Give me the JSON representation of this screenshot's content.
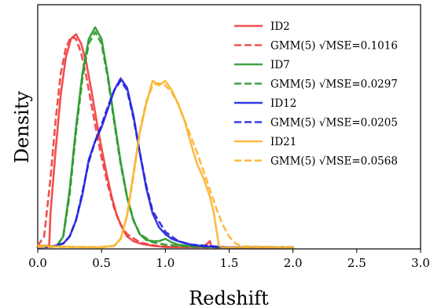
{
  "chart_data": {
    "type": "line",
    "xlabel": "Redshift",
    "ylabel": "Density",
    "xlim": [
      0.0,
      3.0
    ],
    "ylim": [
      0.0,
      1.0
    ],
    "xticks": [
      "0.0",
      "0.5",
      "1.0",
      "1.5",
      "2.0",
      "2.5",
      "3.0"
    ],
    "yticks": [],
    "legend_position": "top-right",
    "series": [
      {
        "name": "ID2",
        "color": "#f03c3c",
        "dash": "solid",
        "x": [
          0.0,
          0.05,
          0.09,
          0.1,
          0.14,
          0.18,
          0.22,
          0.26,
          0.3,
          0.34,
          0.38,
          0.42,
          0.46,
          0.5,
          0.54,
          0.58,
          0.62,
          0.66,
          0.7,
          0.75,
          0.8,
          0.85,
          0.9,
          1.0,
          1.1,
          1.2,
          1.3,
          1.35,
          1.36,
          1.5,
          2.0
        ],
        "y": [
          0.01,
          0.01,
          0.01,
          0.15,
          0.42,
          0.66,
          0.82,
          0.9,
          0.92,
          0.88,
          0.8,
          0.68,
          0.55,
          0.43,
          0.32,
          0.22,
          0.14,
          0.09,
          0.05,
          0.03,
          0.02,
          0.015,
          0.01,
          0.005,
          0.005,
          0.005,
          0.005,
          0.03,
          0.005,
          0.003,
          0.003
        ]
      },
      {
        "name": "GMM(5) √MSE=0.1016",
        "color": "#f03c3c",
        "dash": "dashed",
        "x": [
          0.0,
          0.05,
          0.1,
          0.14,
          0.18,
          0.22,
          0.26,
          0.3,
          0.34,
          0.38,
          0.42,
          0.46,
          0.5,
          0.55,
          0.6,
          0.65,
          0.7,
          0.8,
          0.9,
          1.0,
          1.2,
          1.5,
          2.0
        ],
        "y": [
          0.01,
          0.05,
          0.3,
          0.55,
          0.75,
          0.86,
          0.91,
          0.9,
          0.84,
          0.74,
          0.62,
          0.5,
          0.39,
          0.27,
          0.17,
          0.1,
          0.06,
          0.025,
          0.012,
          0.006,
          0.004,
          0.003,
          0.003
        ]
      },
      {
        "name": "ID7",
        "color": "#2a9a2a",
        "dash": "solid",
        "x": [
          0.0,
          0.15,
          0.2,
          0.25,
          0.3,
          0.35,
          0.4,
          0.45,
          0.5,
          0.55,
          0.6,
          0.65,
          0.7,
          0.75,
          0.8,
          0.85,
          0.9,
          0.95,
          1.0,
          1.05,
          1.1,
          1.2,
          1.5,
          2.0
        ],
        "y": [
          0.005,
          0.01,
          0.05,
          0.25,
          0.52,
          0.75,
          0.9,
          0.95,
          0.9,
          0.74,
          0.55,
          0.37,
          0.22,
          0.12,
          0.06,
          0.035,
          0.03,
          0.03,
          0.04,
          0.025,
          0.015,
          0.008,
          0.003,
          0.003
        ]
      },
      {
        "name": "GMM(5) √MSE=0.0297",
        "color": "#2a9a2a",
        "dash": "dashed",
        "x": [
          0.0,
          0.15,
          0.2,
          0.25,
          0.3,
          0.35,
          0.4,
          0.45,
          0.5,
          0.55,
          0.6,
          0.65,
          0.7,
          0.75,
          0.8,
          0.9,
          1.0,
          1.1,
          1.2,
          1.5,
          2.0
        ],
        "y": [
          0.005,
          0.01,
          0.05,
          0.23,
          0.5,
          0.73,
          0.88,
          0.93,
          0.88,
          0.73,
          0.54,
          0.36,
          0.22,
          0.12,
          0.06,
          0.025,
          0.015,
          0.01,
          0.006,
          0.003,
          0.003
        ]
      },
      {
        "name": "ID12",
        "color": "#2323e0",
        "dash": "solid",
        "x": [
          0.0,
          0.1,
          0.2,
          0.25,
          0.3,
          0.35,
          0.4,
          0.45,
          0.5,
          0.55,
          0.6,
          0.65,
          0.7,
          0.75,
          0.8,
          0.85,
          0.9,
          0.95,
          1.0,
          1.05,
          1.1,
          1.2,
          1.3,
          1.5,
          2.0
        ],
        "y": [
          0.003,
          0.005,
          0.02,
          0.05,
          0.12,
          0.23,
          0.38,
          0.46,
          0.52,
          0.6,
          0.68,
          0.73,
          0.69,
          0.57,
          0.41,
          0.26,
          0.15,
          0.09,
          0.06,
          0.04,
          0.03,
          0.015,
          0.008,
          0.003,
          0.003
        ]
      },
      {
        "name": "GMM(5) √MSE=0.0205",
        "color": "#2323e0",
        "dash": "dashed",
        "x": [
          0.0,
          0.1,
          0.2,
          0.25,
          0.3,
          0.35,
          0.4,
          0.45,
          0.5,
          0.55,
          0.6,
          0.65,
          0.7,
          0.75,
          0.8,
          0.85,
          0.9,
          1.0,
          1.1,
          1.2,
          1.5,
          2.0
        ],
        "y": [
          0.003,
          0.005,
          0.02,
          0.05,
          0.12,
          0.24,
          0.37,
          0.46,
          0.53,
          0.61,
          0.68,
          0.72,
          0.68,
          0.56,
          0.41,
          0.27,
          0.16,
          0.07,
          0.03,
          0.015,
          0.003,
          0.003
        ]
      },
      {
        "name": "ID21",
        "color": "#fbb42d",
        "dash": "solid",
        "x": [
          0.0,
          0.3,
          0.5,
          0.6,
          0.65,
          0.7,
          0.75,
          0.8,
          0.85,
          0.9,
          0.95,
          1.0,
          1.05,
          1.1,
          1.15,
          1.2,
          1.25,
          1.3,
          1.35,
          1.38,
          1.4,
          1.42,
          1.45,
          1.5,
          2.0
        ],
        "y": [
          0.01,
          0.005,
          0.003,
          0.01,
          0.04,
          0.14,
          0.32,
          0.5,
          0.62,
          0.72,
          0.7,
          0.72,
          0.68,
          0.62,
          0.55,
          0.45,
          0.36,
          0.3,
          0.22,
          0.15,
          0.08,
          0.01,
          0.003,
          0.003,
          0.003
        ]
      },
      {
        "name": "GMM(5) √MSE=0.0568",
        "color": "#fbb42d",
        "dash": "dashed",
        "x": [
          0.0,
          0.5,
          0.6,
          0.65,
          0.7,
          0.75,
          0.8,
          0.85,
          0.9,
          0.95,
          1.0,
          1.05,
          1.1,
          1.15,
          1.2,
          1.25,
          1.3,
          1.35,
          1.4,
          1.45,
          1.5,
          1.55,
          1.6,
          2.0
        ],
        "y": [
          0.005,
          0.005,
          0.01,
          0.04,
          0.14,
          0.31,
          0.5,
          0.63,
          0.7,
          0.71,
          0.7,
          0.67,
          0.62,
          0.55,
          0.48,
          0.41,
          0.33,
          0.25,
          0.17,
          0.1,
          0.05,
          0.02,
          0.008,
          0.003
        ]
      }
    ]
  }
}
